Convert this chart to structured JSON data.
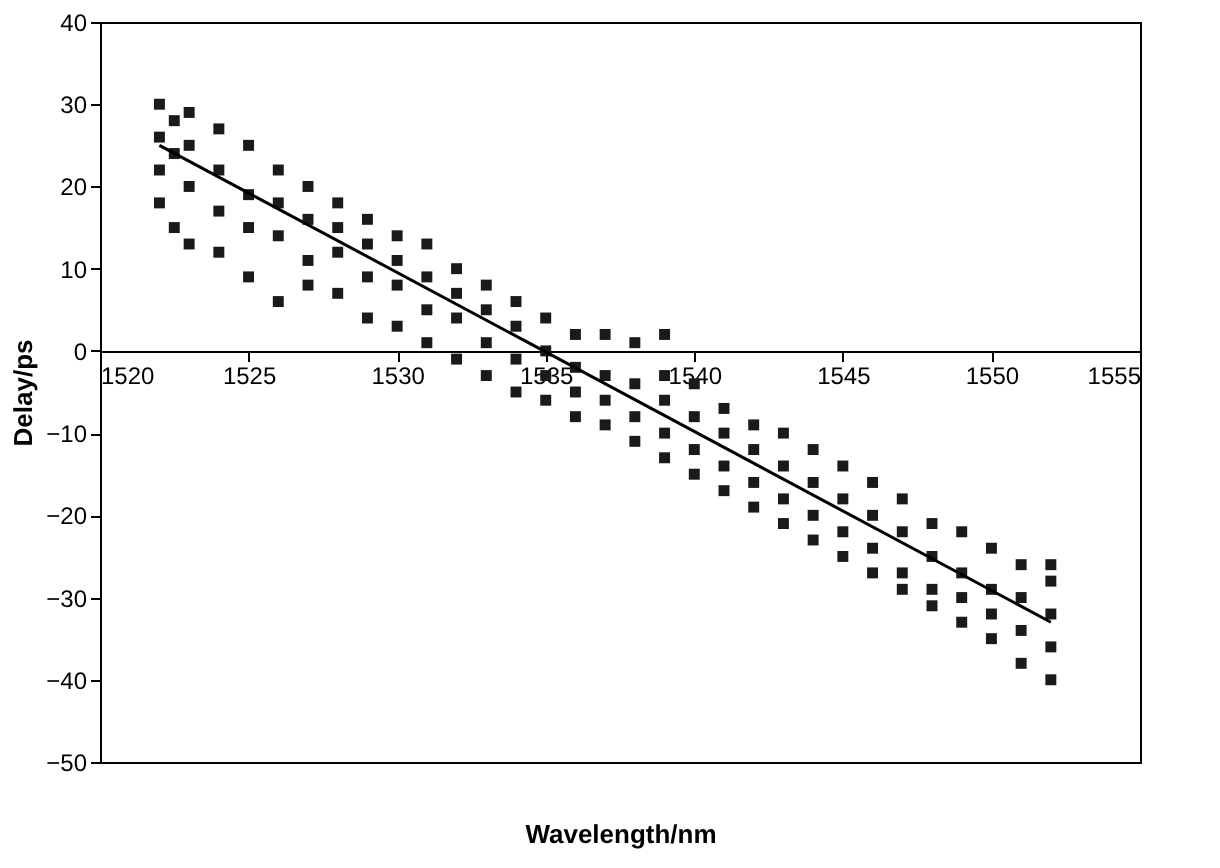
{
  "chart_data": {
    "type": "scatter",
    "xlabel": "Wavelength/nm",
    "ylabel": "Delay/ps",
    "xlim": [
      1520,
      1555
    ],
    "xticks": [
      1520,
      1525,
      1530,
      1535,
      1540,
      1545,
      1550,
      1555
    ],
    "ylim": [
      -50,
      40
    ],
    "yticks": [
      -50,
      -40,
      -30,
      -20,
      -10,
      0,
      10,
      20,
      30,
      40
    ],
    "grid": false,
    "series": [
      {
        "color": "#1a1a1a",
        "marker": "square",
        "x": [
          1522,
          1522,
          1522,
          1522,
          1522.5,
          1522.5,
          1522.5,
          1523,
          1523,
          1523,
          1523,
          1524,
          1524,
          1524,
          1524,
          1525,
          1525,
          1525,
          1525,
          1526,
          1526,
          1526,
          1526,
          1527,
          1527,
          1527,
          1527,
          1528,
          1528,
          1528,
          1528,
          1529,
          1529,
          1529,
          1529,
          1530,
          1530,
          1530,
          1530,
          1531,
          1531,
          1531,
          1531,
          1532,
          1532,
          1532,
          1532,
          1533,
          1533,
          1533,
          1533,
          1534,
          1534,
          1534,
          1534,
          1535,
          1535,
          1535,
          1535,
          1536,
          1536,
          1536,
          1536,
          1537,
          1537,
          1537,
          1537,
          1538,
          1538,
          1538,
          1538,
          1539,
          1539,
          1539,
          1539,
          1539,
          1540,
          1540,
          1540,
          1540,
          1541,
          1541,
          1541,
          1541,
          1542,
          1542,
          1542,
          1542,
          1543,
          1543,
          1543,
          1543,
          1544,
          1544,
          1544,
          1544,
          1545,
          1545,
          1545,
          1545,
          1546,
          1546,
          1546,
          1546,
          1547,
          1547,
          1547,
          1547,
          1548,
          1548,
          1548,
          1548,
          1549,
          1549,
          1549,
          1549,
          1550,
          1550,
          1550,
          1550,
          1551,
          1551,
          1551,
          1551,
          1552,
          1552,
          1552,
          1552,
          1552
        ],
        "values": [
          30,
          26,
          22,
          18,
          28,
          15,
          24,
          29,
          20,
          13,
          25,
          27,
          17,
          22,
          12,
          25,
          15,
          19,
          9,
          22,
          6,
          14,
          18,
          20,
          11,
          16,
          8,
          18,
          12,
          7,
          15,
          16,
          9,
          13,
          4,
          14,
          8,
          11,
          3,
          13,
          5,
          9,
          1,
          10,
          4,
          7,
          -1,
          8,
          1,
          5,
          -3,
          6,
          -1,
          3,
          -5,
          4,
          -3,
          0,
          -6,
          2,
          -5,
          -2,
          -8,
          2,
          -6,
          -3,
          -9,
          1,
          -8,
          -4,
          -11,
          -3,
          -10,
          -6,
          -13,
          2,
          -4,
          -12,
          -8,
          -15,
          -7,
          -14,
          -10,
          -17,
          -9,
          -16,
          -12,
          -19,
          -10,
          -18,
          -14,
          -21,
          -12,
          -20,
          -16,
          -23,
          -14,
          -22,
          -18,
          -25,
          -16,
          -24,
          -20,
          -27,
          -18,
          -27,
          -22,
          -29,
          -21,
          -29,
          -25,
          -31,
          -22,
          -30,
          -27,
          -33,
          -24,
          -32,
          -29,
          -35,
          -26,
          -34,
          -30,
          -38,
          -28,
          -36,
          -32,
          -40,
          -26
        ]
      },
      {
        "type": "line",
        "color": "#000000",
        "x": [
          1522,
          1552
        ],
        "values": [
          25,
          -33
        ]
      }
    ]
  }
}
